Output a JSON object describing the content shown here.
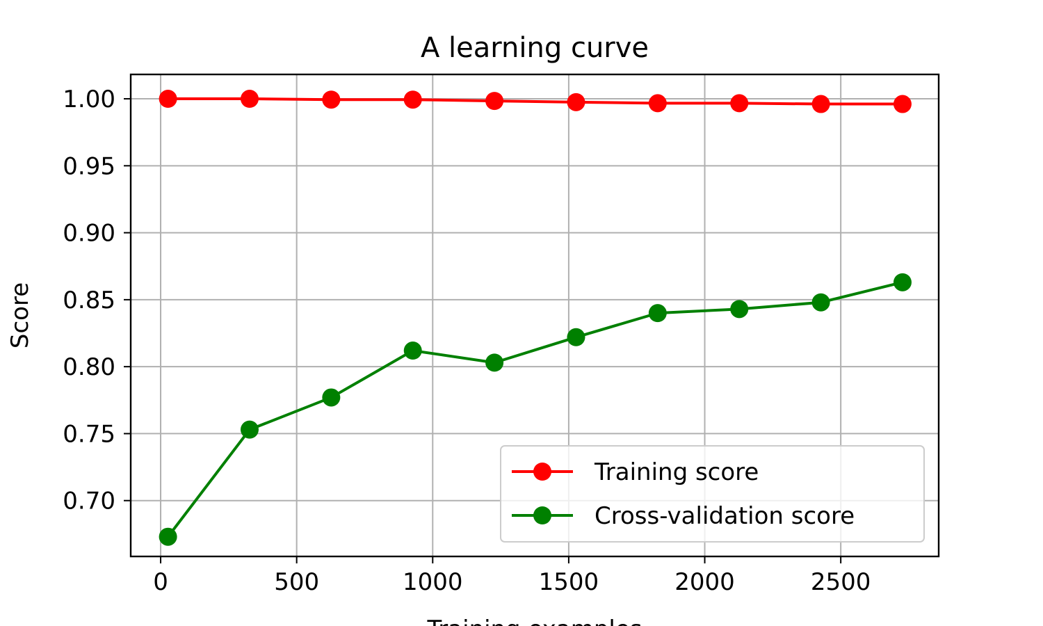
{
  "chart_data": {
    "type": "line",
    "title": "A learning curve",
    "xlabel": "Training examples",
    "ylabel": "Score",
    "xlim": [
      -110,
      2860
    ],
    "ylim": [
      0.6583,
      1.0182
    ],
    "xticks": [
      0,
      500,
      1000,
      1500,
      2000,
      2500
    ],
    "yticks": [
      0.7,
      0.75,
      0.8,
      0.85,
      0.9,
      0.95,
      1.0
    ],
    "ytick_labels": [
      "0.70",
      "0.75",
      "0.80",
      "0.85",
      "0.90",
      "0.95",
      "1.00"
    ],
    "grid": true,
    "legend_position": "lower-right",
    "x": [
      27,
      327,
      627,
      927,
      1227,
      1527,
      1827,
      2127,
      2427,
      2727
    ],
    "series": [
      {
        "name": "Training score",
        "color": "#ff0000",
        "marker": "circle",
        "values": [
          1.0,
          1.0,
          0.9994,
          0.9994,
          0.9984,
          0.9975,
          0.9967,
          0.9967,
          0.9961,
          0.9961
        ]
      },
      {
        "name": "Cross-validation score",
        "color": "#008000",
        "marker": "circle",
        "values": [
          0.673,
          0.753,
          0.777,
          0.812,
          0.803,
          0.822,
          0.84,
          0.843,
          0.848,
          0.863
        ]
      }
    ]
  }
}
